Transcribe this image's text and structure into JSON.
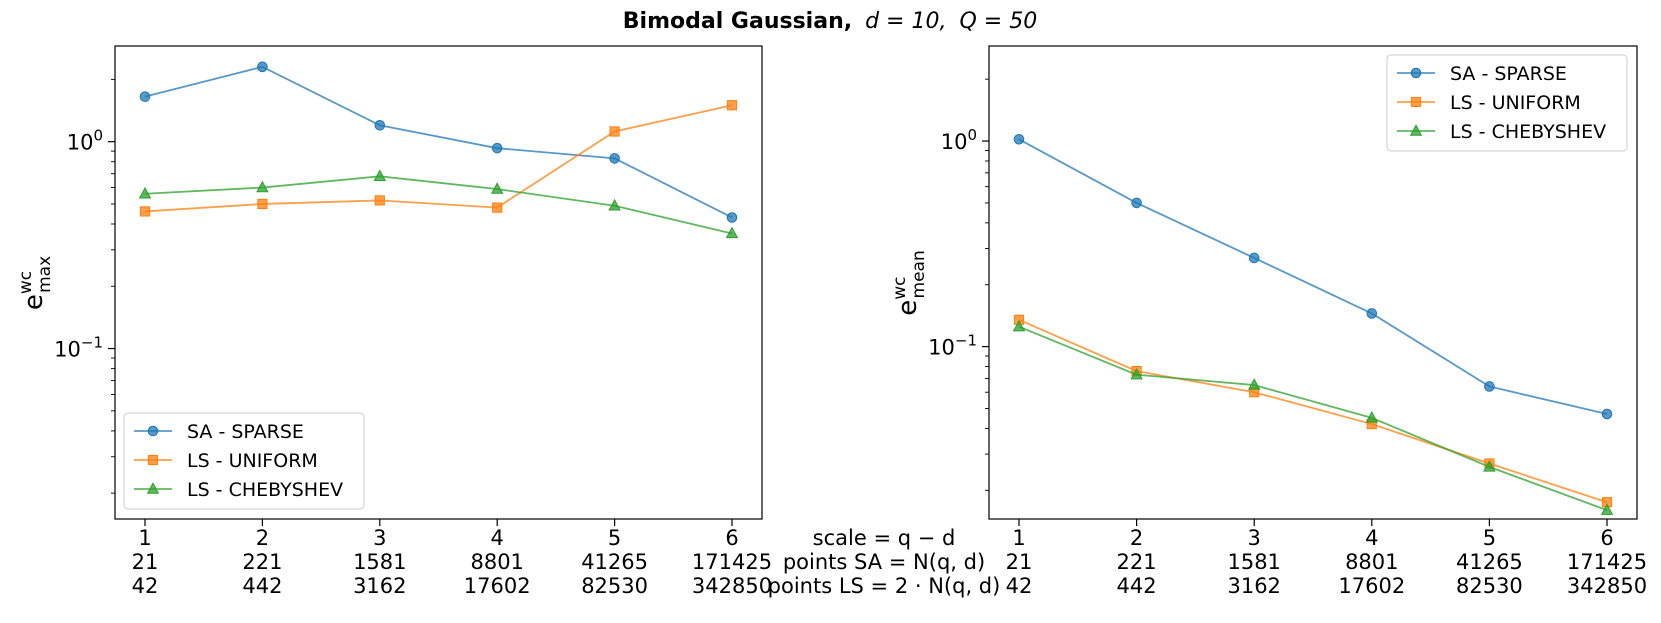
{
  "title": {
    "bold": "Bimodal Gaussian,",
    "d_label": "d = 10,",
    "q_label": "Q = 50"
  },
  "bottom_labels": {
    "scale": "scale = q − d",
    "points_sa": "points SA = N(q, d)",
    "points_ls": "points LS = 2 · N(q, d)"
  },
  "colors": {
    "sa_sparse": "#1f77b4",
    "ls_uniform": "#ff7f0e",
    "ls_chebyshev": "#2ca02c"
  },
  "chart_data": [
    {
      "type": "line",
      "yscale": "log",
      "ylabel_base": "e",
      "ylabel_sup": "wc",
      "ylabel_sub": "max",
      "ylim": [
        0.015,
        2.9
      ],
      "y_ticks": [
        {
          "value": 1.0,
          "base": "10",
          "exp": "0"
        },
        {
          "value": 0.1,
          "base": "10",
          "exp": "−1"
        }
      ],
      "x": [
        1,
        2,
        3,
        4,
        5,
        6
      ],
      "x_tick_rows": [
        [
          "1",
          "2",
          "3",
          "4",
          "5",
          "6"
        ],
        [
          "21",
          "221",
          "1581",
          "8801",
          "41265",
          "171425"
        ],
        [
          "42",
          "442",
          "3162",
          "17602",
          "82530",
          "342850"
        ]
      ],
      "legend_position": "lower-left",
      "series": [
        {
          "name": "SA - SPARSE",
          "marker": "circle",
          "color_key": "sa_sparse",
          "values": [
            1.65,
            2.3,
            1.2,
            0.93,
            0.83,
            0.43
          ]
        },
        {
          "name": "LS - UNIFORM",
          "marker": "square",
          "color_key": "ls_uniform",
          "values": [
            0.46,
            0.5,
            0.52,
            0.48,
            1.12,
            1.5
          ]
        },
        {
          "name": "LS - CHEBYSHEV",
          "marker": "triangle",
          "color_key": "ls_chebyshev",
          "values": [
            0.56,
            0.6,
            0.68,
            0.59,
            0.49,
            0.36
          ]
        }
      ]
    },
    {
      "type": "line",
      "yscale": "log",
      "ylabel_base": "e",
      "ylabel_sup": "wc",
      "ylabel_sub": "mean",
      "ylim": [
        0.0145,
        2.9
      ],
      "y_ticks": [
        {
          "value": 1.0,
          "base": "10",
          "exp": "0"
        },
        {
          "value": 0.1,
          "base": "10",
          "exp": "−1"
        }
      ],
      "x": [
        1,
        2,
        3,
        4,
        5,
        6
      ],
      "x_tick_rows": [
        [
          "1",
          "2",
          "3",
          "4",
          "5",
          "6"
        ],
        [
          "21",
          "221",
          "1581",
          "8801",
          "41265",
          "171425"
        ],
        [
          "42",
          "442",
          "3162",
          "17602",
          "82530",
          "342850"
        ]
      ],
      "legend_position": "upper-right",
      "series": [
        {
          "name": "SA - SPARSE",
          "marker": "circle",
          "color_key": "sa_sparse",
          "values": [
            1.02,
            0.5,
            0.27,
            0.145,
            0.064,
            0.047
          ]
        },
        {
          "name": "LS - UNIFORM",
          "marker": "square",
          "color_key": "ls_uniform",
          "values": [
            0.135,
            0.076,
            0.06,
            0.042,
            0.027,
            0.0175
          ]
        },
        {
          "name": "LS - CHEBYSHEV",
          "marker": "triangle",
          "color_key": "ls_chebyshev",
          "values": [
            0.125,
            0.073,
            0.065,
            0.045,
            0.026,
            0.016
          ]
        }
      ]
    }
  ]
}
